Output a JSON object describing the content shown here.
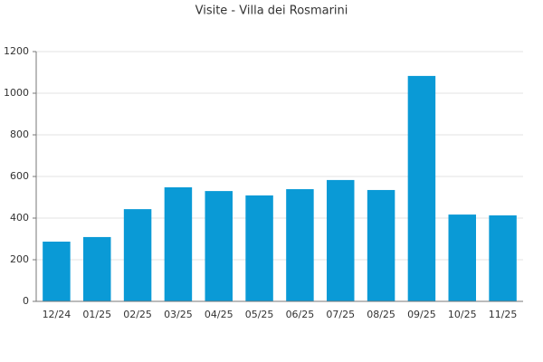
{
  "chart_data": {
    "type": "bar",
    "title": "Visite - Villa dei Rosmarini",
    "categories": [
      "12/24",
      "01/25",
      "02/25",
      "03/25",
      "04/25",
      "05/25",
      "06/25",
      "07/25",
      "08/25",
      "09/25",
      "10/25",
      "11/25"
    ],
    "values": [
      287,
      309,
      443,
      548,
      530,
      509,
      539,
      583,
      535,
      1083,
      417,
      413
    ],
    "color": "#0a9ad6",
    "ylim": [
      0,
      1200
    ],
    "yticks": [
      0,
      200,
      400,
      600,
      800,
      1000,
      1200
    ],
    "grid": true
  }
}
